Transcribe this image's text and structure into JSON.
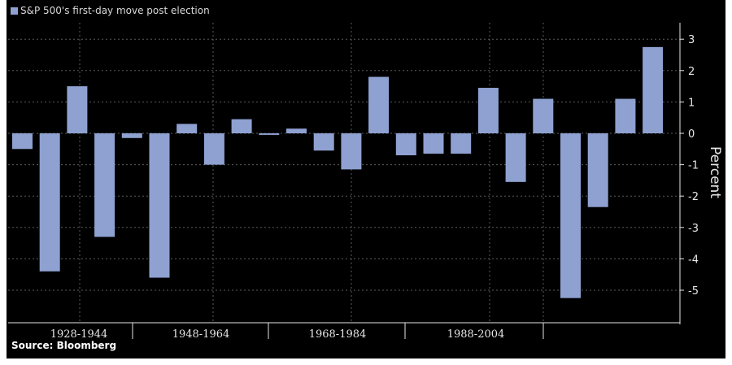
{
  "chart_data": {
    "type": "bar",
    "title": "S&P 500's first-day move post election",
    "legend": [
      "S&P 500's first-day move post election"
    ],
    "legend_position": "top-left",
    "ylabel": "Percent",
    "xlabel": "",
    "ylim": [
      -6,
      3.3
    ],
    "yticks": [
      3,
      2,
      1,
      0,
      -1,
      -2,
      -3,
      -4,
      -5
    ],
    "category_groups": [
      "1928-1944",
      "1948-1964",
      "1968-1984",
      "1988-2004"
    ],
    "series": [
      {
        "name": "S&P 500's first-day move post election",
        "values": [
          -0.5,
          -4.4,
          1.5,
          -3.3,
          -0.15,
          -4.6,
          0.3,
          -1.0,
          0.45,
          -0.05,
          0.15,
          -0.55,
          -1.15,
          1.8,
          -0.7,
          -0.65,
          -0.65,
          1.45,
          -1.55,
          1.1,
          -5.25,
          -2.35,
          1.1,
          2.75
        ]
      }
    ],
    "colors": {
      "bar": "#8ea1d1",
      "grid": "#5c5c5c",
      "background": "#000000"
    },
    "grid": true
  },
  "source": "Source: Bloomberg"
}
